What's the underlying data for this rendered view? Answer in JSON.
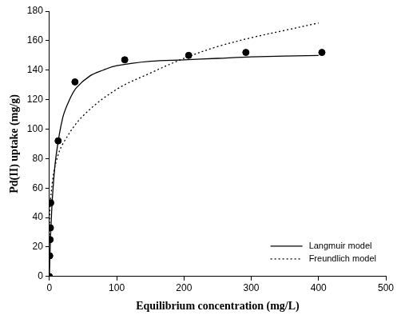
{
  "chart_data": {
    "type": "scatter",
    "x_label": "Equilibrium concentration (mg/L)",
    "y_label": "Pd(II) uptake (mg/g)",
    "xlim": [
      0,
      500
    ],
    "xticks": [
      0,
      100,
      200,
      300,
      400,
      500
    ],
    "ylim": [
      0,
      180
    ],
    "yticks": [
      0,
      20,
      40,
      60,
      80,
      100,
      120,
      140,
      160,
      180
    ],
    "grid": false,
    "legend": "lower right",
    "series": [
      {
        "type": "scatter",
        "marker": "circle",
        "color": "#000000",
        "x": [
          0,
          0.5,
          1,
          1.5,
          2,
          13,
          38,
          112,
          207,
          292,
          405
        ],
        "values": [
          0,
          14,
          25,
          33,
          50,
          92,
          132,
          147,
          150,
          152,
          152
        ]
      },
      {
        "name": "Langmuir model",
        "type": "line",
        "line_style": "solid",
        "color": "#000000",
        "x": [
          0,
          1,
          2,
          5,
          10,
          20,
          30,
          40,
          60,
          80,
          100,
          150,
          200,
          250,
          300,
          400
        ],
        "values": [
          0,
          16,
          30,
          57,
          82,
          108,
          120,
          128,
          136,
          140,
          143,
          146,
          147,
          148,
          149,
          150
        ]
      },
      {
        "name": "Freundlich model",
        "type": "line",
        "line_style": "dotted",
        "color": "#000000",
        "x": [
          0.1,
          1,
          5,
          10,
          20,
          50,
          100,
          150,
          200,
          250,
          300,
          350,
          400
        ],
        "values": [
          28,
          47,
          66,
          78,
          90,
          109,
          127,
          138,
          148,
          156,
          162,
          167,
          172
        ]
      }
    ]
  }
}
